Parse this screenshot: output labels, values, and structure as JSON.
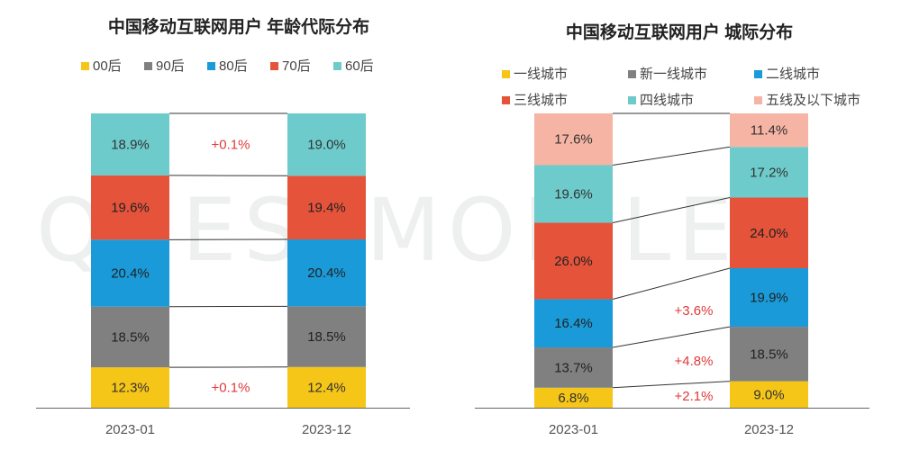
{
  "watermark_text": "QUESTMOBILE",
  "chart_data": [
    {
      "type": "bar",
      "stacked": true,
      "title": "中国移动互联网用户 年龄代际分布",
      "categories": [
        "2023-01",
        "2023-12"
      ],
      "series": [
        {
          "name": "00后",
          "color": "#f5c518",
          "values": [
            12.3,
            12.4
          ],
          "labels": [
            "12.3%",
            "12.4%"
          ]
        },
        {
          "name": "90后",
          "color": "#808080",
          "values": [
            18.5,
            18.5
          ],
          "labels": [
            "18.5%",
            "18.5%"
          ]
        },
        {
          "name": "80后",
          "color": "#1a9ad8",
          "values": [
            20.4,
            20.4
          ],
          "labels": [
            "20.4%",
            "20.4%"
          ]
        },
        {
          "name": "70后",
          "color": "#e5533a",
          "values": [
            19.6,
            19.4
          ],
          "labels": [
            "19.6%",
            "19.4%"
          ]
        },
        {
          "name": "60后",
          "color": "#6dcbcb",
          "values": [
            18.9,
            19.0
          ],
          "labels": [
            "18.9%",
            "19.0%"
          ]
        }
      ],
      "annotations": [
        {
          "series": "00后",
          "text": "+0.1%"
        },
        {
          "series": "60后",
          "text": "+0.1%"
        }
      ],
      "legend": "top",
      "grid": false
    },
    {
      "type": "bar",
      "stacked": true,
      "title": "中国移动互联网用户 城际分布",
      "categories": [
        "2023-01",
        "2023-12"
      ],
      "series": [
        {
          "name": "一线城市",
          "color": "#f5c518",
          "values": [
            6.8,
            9.0
          ],
          "labels": [
            "6.8%",
            "9.0%"
          ]
        },
        {
          "name": "新一线城市",
          "color": "#808080",
          "values": [
            13.7,
            18.5
          ],
          "labels": [
            "13.7%",
            "18.5%"
          ]
        },
        {
          "name": "二线城市",
          "color": "#1a9ad8",
          "values": [
            16.4,
            19.9
          ],
          "labels": [
            "16.4%",
            "19.9%"
          ]
        },
        {
          "name": "三线城市",
          "color": "#e5533a",
          "values": [
            26.0,
            24.0
          ],
          "labels": [
            "26.0%",
            "24.0%"
          ]
        },
        {
          "name": "四线城市",
          "color": "#6dcbcb",
          "values": [
            19.6,
            17.2
          ],
          "labels": [
            "19.6%",
            "17.2%"
          ]
        },
        {
          "name": "五线及以下城市",
          "color": "#f6b4a4",
          "values": [
            17.6,
            11.4
          ],
          "labels": [
            "17.6%",
            "11.4%"
          ]
        }
      ],
      "annotations": [
        {
          "series": "一线城市",
          "text": "+2.1%"
        },
        {
          "series": "新一线城市",
          "text": "+4.8%"
        },
        {
          "series": "二线城市",
          "text": "+3.6%"
        }
      ],
      "legend": "top",
      "grid": false
    }
  ]
}
